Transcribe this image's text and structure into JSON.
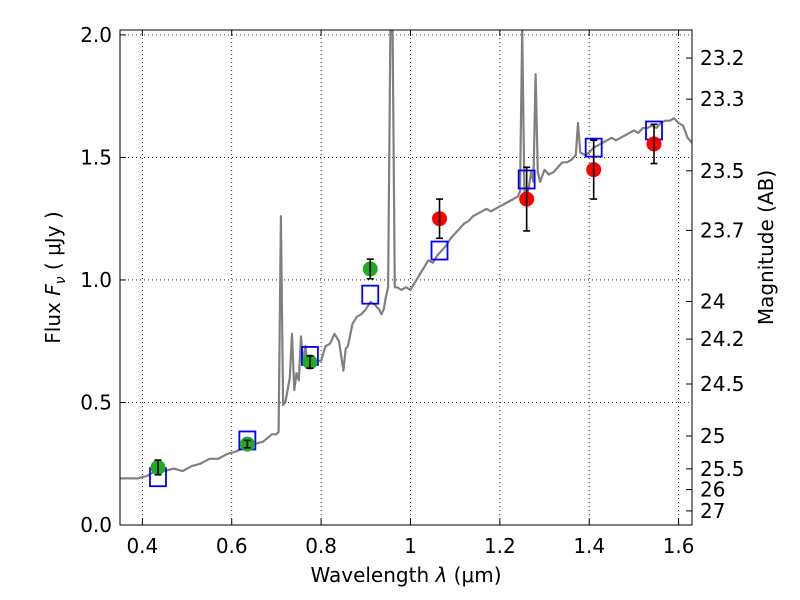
{
  "chart_data": {
    "type": "scatter",
    "xlabel": "Wavelength  λ (μm)",
    "ylabel": "Flux  F_ν  ( μJy )",
    "ylabel_right": "Magnitude (AB)",
    "xlim": [
      0.35,
      1.63
    ],
    "ylim": [
      0.0,
      2.02
    ],
    "grid": true,
    "x_ticks": [
      {
        "value": 0.4,
        "label": "0.4"
      },
      {
        "value": 0.6,
        "label": "0.6"
      },
      {
        "value": 0.8,
        "label": "0.8"
      },
      {
        "value": 1.0,
        "label": "1"
      },
      {
        "value": 1.2,
        "label": "1.2"
      },
      {
        "value": 1.4,
        "label": "1.4"
      },
      {
        "value": 1.6,
        "label": "1.6"
      }
    ],
    "y_ticks": [
      {
        "value": 0.0,
        "label": "0.0"
      },
      {
        "value": 0.5,
        "label": "0.5"
      },
      {
        "value": 1.0,
        "label": "1.0"
      },
      {
        "value": 1.5,
        "label": "1.5"
      },
      {
        "value": 2.0,
        "label": "2.0"
      }
    ],
    "mag_ticks": [
      {
        "mag": 23.2,
        "label": "23.2"
      },
      {
        "mag": 23.3,
        "label": "23.3"
      },
      {
        "mag": 23.5,
        "label": "23.5"
      },
      {
        "mag": 23.7,
        "label": "23.7"
      },
      {
        "mag": 24.0,
        "label": "24"
      },
      {
        "mag": 24.2,
        "label": "24.2"
      },
      {
        "mag": 24.5,
        "label": "24.5"
      },
      {
        "mag": 25.0,
        "label": "25"
      },
      {
        "mag": 25.5,
        "label": "25.5"
      },
      {
        "mag": 26.0,
        "label": "26"
      },
      {
        "mag": 27.0,
        "label": "27"
      }
    ],
    "series": [
      {
        "color": "#808080",
        "marker": "line",
        "points": [
          [
            0.35,
            0.19
          ],
          [
            0.37,
            0.19
          ],
          [
            0.39,
            0.19
          ],
          [
            0.41,
            0.2
          ],
          [
            0.43,
            0.22
          ],
          [
            0.45,
            0.22
          ],
          [
            0.47,
            0.23
          ],
          [
            0.49,
            0.22
          ],
          [
            0.51,
            0.24
          ],
          [
            0.53,
            0.25
          ],
          [
            0.55,
            0.27
          ],
          [
            0.57,
            0.27
          ],
          [
            0.59,
            0.29
          ],
          [
            0.61,
            0.3
          ],
          [
            0.63,
            0.32
          ],
          [
            0.65,
            0.33
          ],
          [
            0.67,
            0.34
          ],
          [
            0.69,
            0.37
          ],
          [
            0.7,
            0.37
          ],
          [
            0.705,
            0.38
          ],
          [
            0.71,
            1.26
          ],
          [
            0.715,
            0.49
          ],
          [
            0.72,
            0.5
          ],
          [
            0.73,
            0.6
          ],
          [
            0.735,
            0.78
          ],
          [
            0.74,
            0.55
          ],
          [
            0.745,
            0.62
          ],
          [
            0.75,
            0.59
          ],
          [
            0.755,
            0.77
          ],
          [
            0.76,
            0.66
          ],
          [
            0.765,
            0.73
          ],
          [
            0.77,
            0.65
          ],
          [
            0.78,
            0.68
          ],
          [
            0.79,
            0.67
          ],
          [
            0.8,
            0.67
          ],
          [
            0.81,
            0.73
          ],
          [
            0.82,
            0.74
          ],
          [
            0.83,
            0.78
          ],
          [
            0.84,
            0.75
          ],
          [
            0.85,
            0.63
          ],
          [
            0.855,
            0.72
          ],
          [
            0.86,
            0.73
          ],
          [
            0.87,
            0.82
          ],
          [
            0.88,
            0.85
          ],
          [
            0.89,
            0.86
          ],
          [
            0.9,
            0.88
          ],
          [
            0.91,
            0.91
          ],
          [
            0.92,
            0.9
          ],
          [
            0.93,
            0.88
          ],
          [
            0.935,
            0.86
          ],
          [
            0.94,
            0.88
          ],
          [
            0.945,
            0.93
          ],
          [
            0.95,
            0.97
          ],
          [
            0.955,
            2.02
          ],
          [
            0.96,
            2.02
          ],
          [
            0.965,
            0.97
          ],
          [
            0.97,
            0.97
          ],
          [
            0.98,
            0.96
          ],
          [
            0.99,
            0.97
          ],
          [
            1.0,
            0.96
          ],
          [
            1.01,
            0.99
          ],
          [
            1.02,
            1.02
          ],
          [
            1.03,
            1.05
          ],
          [
            1.04,
            1.08
          ],
          [
            1.05,
            1.07
          ],
          [
            1.06,
            1.1
          ],
          [
            1.07,
            1.12
          ],
          [
            1.08,
            1.14
          ],
          [
            1.09,
            1.17
          ],
          [
            1.1,
            1.19
          ],
          [
            1.11,
            1.21
          ],
          [
            1.12,
            1.23
          ],
          [
            1.13,
            1.24
          ],
          [
            1.14,
            1.26
          ],
          [
            1.15,
            1.27
          ],
          [
            1.16,
            1.28
          ],
          [
            1.17,
            1.29
          ],
          [
            1.18,
            1.28
          ],
          [
            1.19,
            1.29
          ],
          [
            1.2,
            1.3
          ],
          [
            1.21,
            1.31
          ],
          [
            1.22,
            1.32
          ],
          [
            1.23,
            1.33
          ],
          [
            1.24,
            1.34
          ],
          [
            1.245,
            1.36
          ],
          [
            1.25,
            2.02
          ],
          [
            1.255,
            1.36
          ],
          [
            1.26,
            1.34
          ],
          [
            1.265,
            1.38
          ],
          [
            1.27,
            1.44
          ],
          [
            1.275,
            1.4
          ],
          [
            1.28,
            1.84
          ],
          [
            1.285,
            1.44
          ],
          [
            1.29,
            1.4
          ],
          [
            1.3,
            1.45
          ],
          [
            1.31,
            1.43
          ],
          [
            1.32,
            1.44
          ],
          [
            1.33,
            1.46
          ],
          [
            1.34,
            1.48
          ],
          [
            1.35,
            1.48
          ],
          [
            1.36,
            1.49
          ],
          [
            1.37,
            1.51
          ],
          [
            1.375,
            1.64
          ],
          [
            1.38,
            1.52
          ],
          [
            1.39,
            1.51
          ],
          [
            1.4,
            1.52
          ],
          [
            1.41,
            1.54
          ],
          [
            1.42,
            1.55
          ],
          [
            1.43,
            1.56
          ],
          [
            1.44,
            1.57
          ],
          [
            1.45,
            1.58
          ],
          [
            1.46,
            1.57
          ],
          [
            1.47,
            1.58
          ],
          [
            1.48,
            1.59
          ],
          [
            1.49,
            1.6
          ],
          [
            1.5,
            1.61
          ],
          [
            1.51,
            1.6
          ],
          [
            1.52,
            1.62
          ],
          [
            1.53,
            1.62
          ],
          [
            1.54,
            1.63
          ],
          [
            1.55,
            1.62
          ],
          [
            1.56,
            1.64
          ],
          [
            1.57,
            1.65
          ],
          [
            1.58,
            1.65
          ],
          [
            1.59,
            1.66
          ],
          [
            1.6,
            1.64
          ],
          [
            1.61,
            1.63
          ],
          [
            1.62,
            1.58
          ],
          [
            1.63,
            1.56
          ]
        ]
      },
      {
        "color": "#0000ff",
        "marker": "square",
        "points": [
          [
            0.435,
            0.195
          ],
          [
            0.635,
            0.345
          ],
          [
            0.775,
            0.69
          ],
          [
            0.91,
            0.94
          ],
          [
            1.065,
            1.12
          ],
          [
            1.26,
            1.41
          ],
          [
            1.41,
            1.54
          ],
          [
            1.545,
            1.61
          ]
        ]
      },
      {
        "color": "#22aa22",
        "marker": "circle",
        "points": [
          {
            "x": 0.435,
            "y": 0.235,
            "err": 0.03
          },
          {
            "x": 0.635,
            "y": 0.33,
            "err": 0.015
          },
          {
            "x": 0.775,
            "y": 0.665,
            "err": 0.025
          },
          {
            "x": 0.91,
            "y": 1.045,
            "err": 0.04
          }
        ]
      },
      {
        "color": "#ff0000",
        "marker": "circle",
        "points": [
          {
            "x": 1.065,
            "y": 1.25,
            "err": 0.08
          },
          {
            "x": 1.26,
            "y": 1.33,
            "err": 0.13
          },
          {
            "x": 1.41,
            "y": 1.45,
            "err": 0.12
          },
          {
            "x": 1.545,
            "y": 1.555,
            "err": 0.08
          }
        ]
      }
    ]
  }
}
